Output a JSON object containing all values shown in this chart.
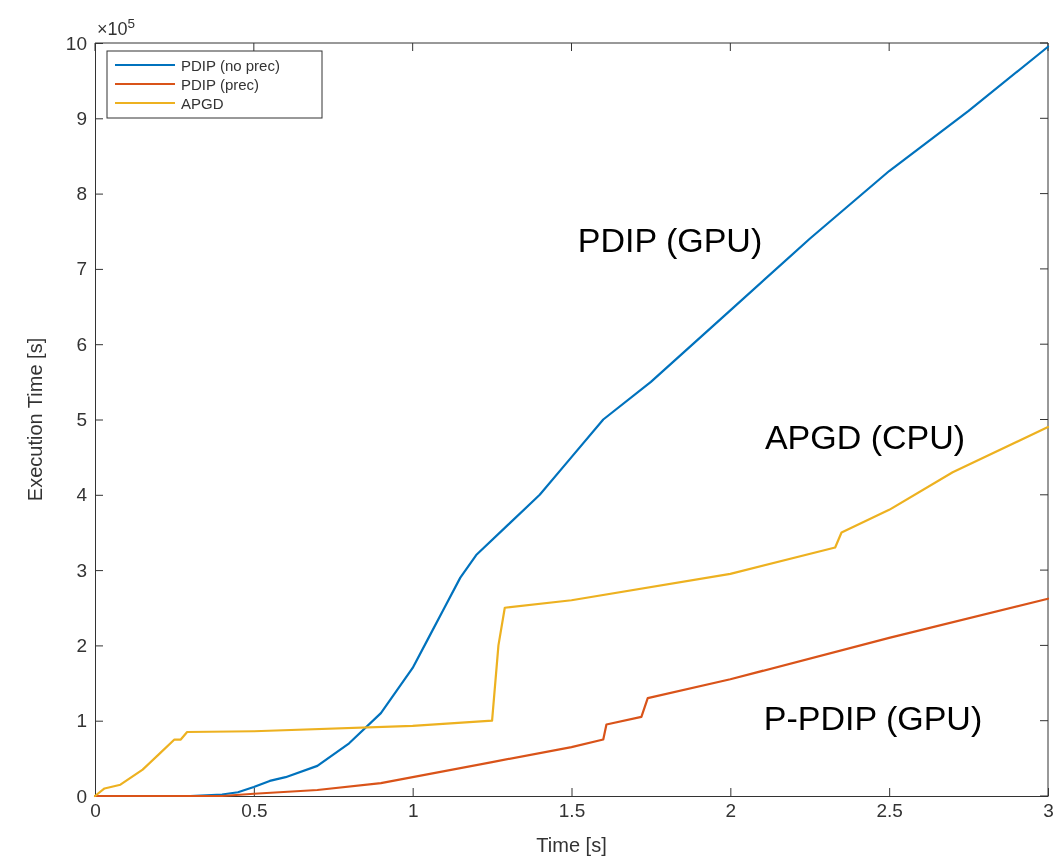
{
  "chart_data": {
    "type": "line",
    "xlabel": "Time [s]",
    "ylabel": "Execution Time [s]",
    "xlim": [
      0,
      3
    ],
    "xticks": [
      0,
      0.5,
      1,
      1.5,
      2,
      2.5,
      3
    ],
    "ylim": [
      0,
      10
    ],
    "yticks": [
      0,
      1,
      2,
      3,
      4,
      5,
      6,
      7,
      8,
      9,
      10
    ],
    "grid": false,
    "legend": "top left",
    "line_style": "solid",
    "marker": "none",
    "series": [
      {
        "name": "PDIP (no prec)",
        "color": "#0072bd",
        "x": [
          0,
          0.3,
          0.4,
          0.45,
          0.5,
          0.55,
          0.6,
          0.7,
          0.8,
          0.9,
          1.0,
          1.05,
          1.1,
          1.15,
          1.2,
          1.3,
          1.4,
          1.5,
          1.6,
          1.75,
          2.0,
          2.25,
          2.5,
          2.75,
          3.0
        ],
        "values": [
          0,
          0,
          0.02,
          0.05,
          0.12,
          0.2,
          0.25,
          0.4,
          0.7,
          1.1,
          1.7,
          2.1,
          2.5,
          2.9,
          3.2,
          3.6,
          4.0,
          4.5,
          5.0,
          5.5,
          6.45,
          7.4,
          8.3,
          9.1,
          9.95
        ]
      },
      {
        "name": "PDIP (prec)",
        "color": "#d95319",
        "x": [
          0,
          0.4,
          0.5,
          0.7,
          0.9,
          1.0,
          1.25,
          1.5,
          1.6,
          1.61,
          1.72,
          1.74,
          2.0,
          2.5,
          3.0
        ],
        "values": [
          0,
          0,
          0.03,
          0.08,
          0.17,
          0.25,
          0.45,
          0.65,
          0.75,
          0.95,
          1.05,
          1.3,
          1.55,
          2.1,
          2.62
        ]
      },
      {
        "name": "APGD",
        "color": "#edb120",
        "x": [
          0,
          0.03,
          0.08,
          0.15,
          0.2,
          0.25,
          0.27,
          0.29,
          0.5,
          1.0,
          1.25,
          1.27,
          1.29,
          1.5,
          2.0,
          2.33,
          2.35,
          2.5,
          2.7,
          3.0
        ],
        "values": [
          0,
          0.1,
          0.15,
          0.35,
          0.55,
          0.75,
          0.75,
          0.85,
          0.86,
          0.93,
          1.0,
          2.0,
          2.5,
          2.6,
          2.95,
          3.3,
          3.5,
          3.8,
          4.3,
          4.9
        ]
      }
    ],
    "annotations": [
      "×10$^{5}$",
      "PDIP (GPU)",
      "APGD (CPU)",
      "P-PDIP (GPU)"
    ]
  }
}
